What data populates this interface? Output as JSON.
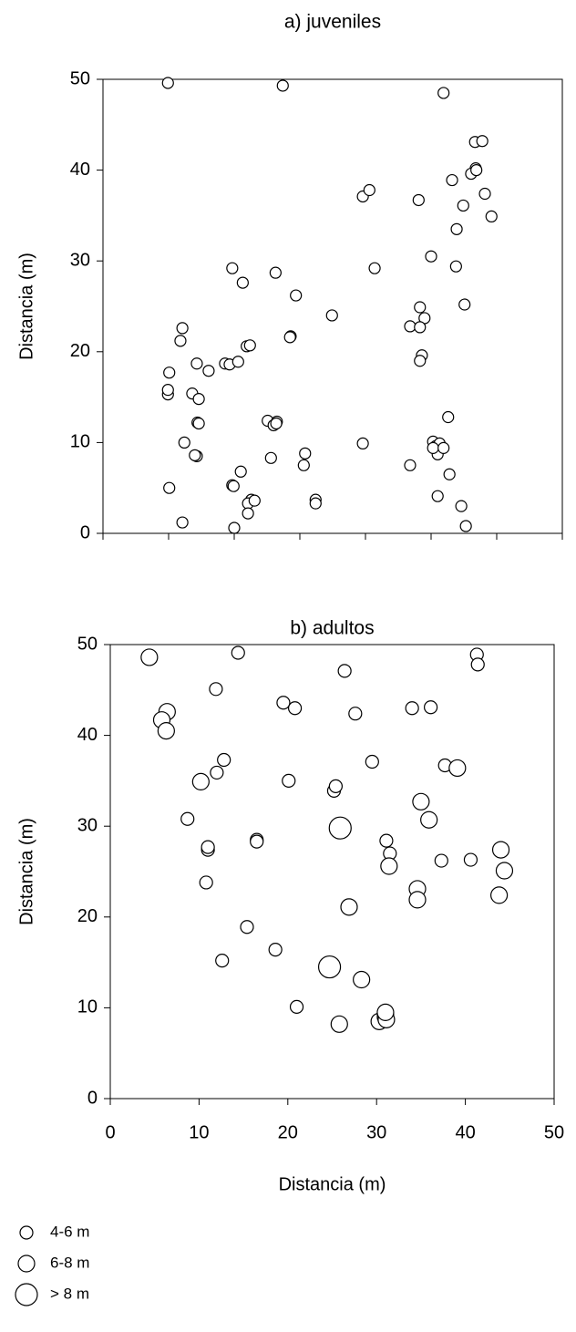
{
  "chart_data": [
    {
      "type": "scatter",
      "title": "a) juveniles",
      "y_label": "Distancia (m)",
      "xlim": [
        0,
        70
      ],
      "xticks": [
        0,
        10,
        20,
        30,
        40,
        50,
        60,
        70
      ],
      "ylim": [
        0,
        50
      ],
      "yticks": [
        0,
        10,
        20,
        30,
        40,
        50
      ],
      "series": [
        {
          "color": "#000000",
          "x": [
            9.9,
            27.4,
            51.9,
            56.7,
            57.8,
            56.8,
            56.1,
            56.9,
            53.2,
            54.9,
            58.2,
            59.2,
            48.1,
            39.6,
            40.6,
            53.9,
            50.0,
            41.4,
            53.8,
            19.7,
            26.3,
            21.3,
            29.4,
            55.1,
            34.9,
            48.3,
            49.0,
            46.8,
            48.3,
            48.6,
            48.3,
            12.1,
            11.8,
            10.1,
            21.9,
            22.4,
            14.3,
            18.6,
            19.3,
            20.6,
            16.1,
            13.6,
            14.6,
            9.9,
            9.9,
            28.6,
            28.5,
            52.6,
            25.1,
            26.5,
            26.0,
            26.4,
            14.4,
            14.6,
            39.6,
            12.4,
            50.3,
            50.7,
            51.3,
            51.0,
            50.3,
            51.9,
            25.6,
            14.3,
            14.0,
            52.8,
            30.8,
            30.6,
            46.8,
            21.0,
            10.1,
            19.7,
            19.9,
            22.6,
            22.1,
            23.1,
            32.4,
            32.4,
            51.0,
            54.6,
            12.1,
            55.3,
            20.0,
            22.1
          ],
          "values": [
            49.6,
            49.3,
            48.5,
            43.1,
            43.2,
            40.2,
            39.6,
            40.0,
            38.9,
            36.1,
            37.4,
            34.9,
            36.7,
            37.1,
            37.8,
            33.5,
            30.5,
            29.2,
            29.4,
            29.2,
            28.7,
            27.6,
            26.2,
            25.2,
            24.0,
            24.9,
            23.7,
            22.8,
            22.7,
            19.6,
            19.0,
            22.6,
            21.2,
            17.7,
            20.6,
            20.7,
            18.7,
            18.7,
            18.6,
            18.9,
            17.9,
            15.4,
            14.8,
            15.3,
            15.8,
            21.7,
            21.6,
            12.8,
            12.4,
            12.3,
            11.9,
            12.1,
            12.2,
            12.1,
            9.9,
            10.0,
            10.1,
            9.6,
            9.9,
            8.7,
            9.4,
            9.4,
            8.3,
            8.5,
            8.6,
            6.5,
            8.8,
            7.5,
            7.5,
            6.8,
            5.0,
            5.3,
            5.2,
            3.7,
            3.3,
            3.6,
            3.7,
            3.3,
            4.1,
            3.0,
            1.2,
            0.8,
            0.6,
            2.2
          ]
        }
      ]
    },
    {
      "type": "scatter",
      "title": "b) adultos",
      "x_label": "Distancia (m)",
      "y_label": "Distancia (m)",
      "xlim": [
        0,
        50
      ],
      "xticks": [
        0,
        10,
        20,
        30,
        40,
        50
      ],
      "ylim": [
        0,
        50
      ],
      "yticks": [
        0,
        10,
        20,
        30,
        40,
        50
      ],
      "series": [
        {
          "name": "4-6 m",
          "color": "#000000",
          "x": [
            14.4,
            41.3,
            41.4,
            26.4,
            11.9,
            19.5,
            20.8,
            27.6,
            34.0,
            36.1,
            12.8,
            12.0,
            20.1,
            25.2,
            25.4,
            29.5,
            37.7,
            8.7,
            11.0,
            11.0,
            16.5,
            16.5,
            31.1,
            31.5,
            37.3,
            40.6,
            10.8,
            15.4,
            18.6,
            12.6,
            21.0
          ],
          "values": [
            49.1,
            48.9,
            47.8,
            47.1,
            45.1,
            43.6,
            43.0,
            42.4,
            43.0,
            43.1,
            37.3,
            35.9,
            35.0,
            33.9,
            34.4,
            37.1,
            36.7,
            30.8,
            27.4,
            27.7,
            28.5,
            28.3,
            28.4,
            27.0,
            26.2,
            26.3,
            23.8,
            18.9,
            16.4,
            15.2,
            10.1
          ]
        },
        {
          "name": "6-8 m",
          "color": "#000000",
          "x": [
            4.4,
            6.4,
            5.8,
            6.3,
            10.2,
            39.1,
            35.0,
            35.9,
            31.4,
            44.0,
            44.4,
            34.6,
            34.6,
            43.8,
            26.9,
            28.3,
            25.8,
            30.3,
            31.0,
            31.0,
            31.1,
            31.0
          ],
          "values": [
            48.6,
            42.6,
            41.7,
            40.5,
            34.9,
            36.4,
            32.7,
            30.7,
            25.6,
            27.4,
            25.1,
            23.1,
            21.9,
            22.4,
            21.1,
            13.1,
            8.2,
            8.5,
            9.3,
            9.0,
            8.7,
            9.5
          ]
        },
        {
          "name": "> 8 m",
          "color": "#000000",
          "x": [
            25.9,
            24.7
          ],
          "values": [
            29.8,
            14.5
          ]
        }
      ]
    }
  ]
}
